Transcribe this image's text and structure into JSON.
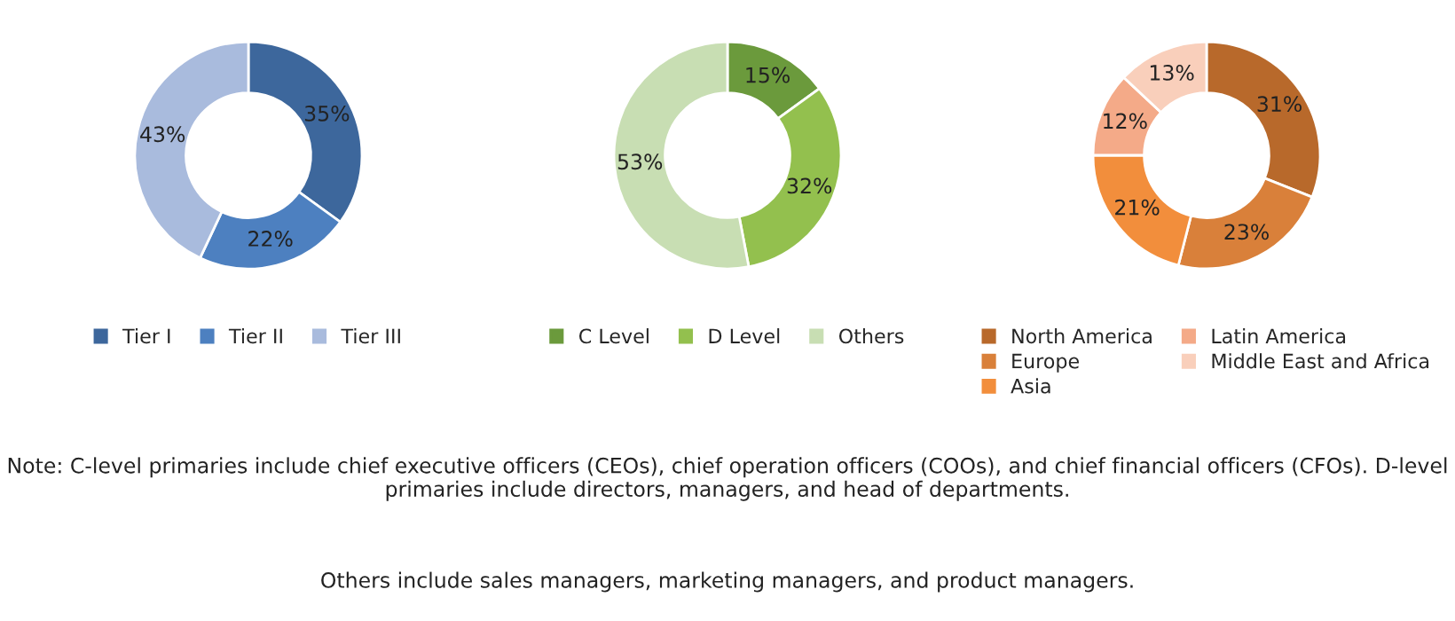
{
  "chart_data": [
    {
      "type": "donut",
      "categories": [
        "Tier I",
        "Tier II",
        "Tier III"
      ],
      "values": [
        35,
        22,
        43
      ],
      "value_labels": [
        "35%",
        "22%",
        "43%"
      ],
      "colors": [
        "#3d679c",
        "#4d80c0",
        "#a9bbdd"
      ],
      "legend": "bottom"
    },
    {
      "type": "donut",
      "categories": [
        "C Level",
        "D Level",
        "Others"
      ],
      "values": [
        15,
        32,
        53
      ],
      "value_labels": [
        "15%",
        "32%",
        "53%"
      ],
      "colors": [
        "#6b9a3c",
        "#93c04e",
        "#c8deb3"
      ],
      "legend": "bottom"
    },
    {
      "type": "donut",
      "categories": [
        "North America",
        "Europe",
        "Asia",
        "Latin America",
        "Middle East and Africa"
      ],
      "values": [
        31,
        23,
        21,
        12,
        13
      ],
      "value_labels": [
        "31%",
        "23%",
        "21%",
        "12%",
        "13%"
      ],
      "colors": [
        "#b8692b",
        "#d9803a",
        "#f28e3c",
        "#f4aa88",
        "#f9cfbb"
      ],
      "legend": "bottom",
      "annotations": [
        "Note: C-level primaries include chief executive officers (CEOs), chief operation officers (COOs), and chief financial officers (CFOs). D-level primaries include directors, managers, and head of departments.",
        "Others include sales managers, marketing managers, and product managers."
      ]
    }
  ]
}
